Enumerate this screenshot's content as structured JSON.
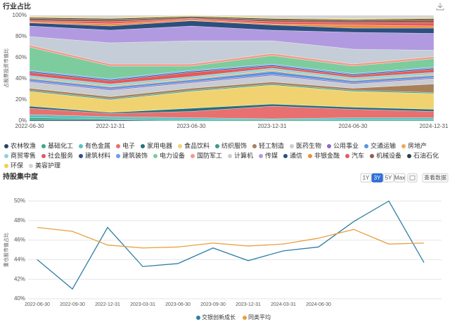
{
  "header": {
    "title": "行业占比"
  },
  "section2": {
    "title": "持股集中度",
    "ranges": [
      "1Y",
      "3Y",
      "5Y",
      "Max"
    ],
    "active_range": 1,
    "view_data": "查看数据"
  },
  "chart_data": [
    {
      "type": "stacked_area",
      "y_label": "占股票投资市值比",
      "categories": [
        "2022-06-30",
        "2022-12-31",
        "2023-06-30",
        "2023-12-31",
        "2024-06-30",
        "2024-12-31"
      ],
      "ylim": [
        0,
        100
      ],
      "yticks": [
        {
          "value": 0,
          "label": "0%"
        },
        {
          "value": 20,
          "label": "20%"
        },
        {
          "value": 40,
          "label": "40%"
        },
        {
          "value": 60,
          "label": "60%"
        },
        {
          "value": 80,
          "label": "80%"
        },
        {
          "value": 100,
          "label": "100%"
        }
      ],
      "grid": true,
      "series": [
        {
          "name": "农林牧渔",
          "color": "#24436b",
          "values": [
            1,
            1,
            0,
            0,
            0,
            0
          ]
        },
        {
          "name": "基础化工",
          "color": "#3aa88a",
          "values": [
            2,
            1,
            1,
            1,
            1,
            1
          ]
        },
        {
          "name": "有色金属",
          "color": "#5bc0c0",
          "values": [
            3,
            2,
            2,
            1,
            2,
            2
          ]
        },
        {
          "name": "电子",
          "color": "#e87070",
          "values": [
            6,
            3,
            6,
            12,
            8,
            6
          ]
        },
        {
          "name": "家用电器",
          "color": "#2b6e7a",
          "values": [
            2,
            1,
            3,
            2,
            2,
            2
          ]
        },
        {
          "name": "食品饮料",
          "color": "#f0d370",
          "values": [
            14,
            12,
            16,
            18,
            15,
            15
          ]
        },
        {
          "name": "纺织服饰",
          "color": "#3c9a8a",
          "values": [
            1,
            1,
            1,
            1,
            1,
            1
          ]
        },
        {
          "name": "轻工制造",
          "color": "#a8805a",
          "values": [
            2,
            2,
            2,
            2,
            2,
            8
          ]
        },
        {
          "name": "医药生物",
          "color": "#c9ccd1",
          "values": [
            6,
            6,
            5,
            6,
            4,
            5
          ]
        },
        {
          "name": "公用事业",
          "color": "#8a6ac2",
          "values": [
            1,
            1,
            1,
            1,
            1,
            1
          ]
        },
        {
          "name": "交通运输",
          "color": "#5a96dc",
          "values": [
            2,
            2,
            2,
            3,
            2,
            2
          ]
        },
        {
          "name": "房地产",
          "color": "#f0a860",
          "values": [
            1,
            1,
            1,
            1,
            1,
            1
          ]
        },
        {
          "name": "商贸零售",
          "color": "#8ad4dc",
          "values": [
            2,
            2,
            2,
            2,
            2,
            2
          ]
        },
        {
          "name": "社会服务",
          "color": "#e45a5a",
          "values": [
            3,
            3,
            4,
            2,
            2,
            3
          ]
        },
        {
          "name": "建筑材料",
          "color": "#2d4f8a",
          "values": [
            1,
            1,
            1,
            1,
            1,
            1
          ]
        },
        {
          "name": "建筑装饰",
          "color": "#6b9af5",
          "values": [
            1,
            1,
            1,
            1,
            1,
            1
          ]
        },
        {
          "name": "电力设备",
          "color": "#7ccc9e",
          "values": [
            22,
            12,
            4,
            8,
            7,
            8
          ]
        },
        {
          "name": "国防军工",
          "color": "#f29a8a",
          "values": [
            2,
            2,
            2,
            2,
            2,
            2
          ]
        },
        {
          "name": "计算机",
          "color": "#c4cdd8",
          "values": [
            8,
            20,
            22,
            12,
            14,
            6
          ]
        },
        {
          "name": "传媒",
          "color": "#b29ae0",
          "values": [
            10,
            12,
            14,
            10,
            16,
            16
          ]
        },
        {
          "name": "通信",
          "color": "#2c4f80",
          "values": [
            3,
            4,
            5,
            5,
            4,
            5
          ]
        },
        {
          "name": "非银金融",
          "color": "#e8903e",
          "values": [
            1,
            2,
            1,
            1,
            3,
            2
          ]
        },
        {
          "name": "汽车",
          "color": "#e85a5a",
          "values": [
            1,
            2,
            1,
            2,
            2,
            3
          ]
        },
        {
          "name": "机械设备",
          "color": "#9a5a4a",
          "values": [
            2,
            2,
            1,
            2,
            2,
            3
          ]
        },
        {
          "name": "石油石化",
          "color": "#2c3e50",
          "values": [
            1,
            1,
            1,
            1,
            1,
            1
          ]
        },
        {
          "name": "环保",
          "color": "#f0d050",
          "values": [
            1,
            1,
            1,
            1,
            1,
            1
          ]
        },
        {
          "name": "美容护理",
          "color": "#d4d4d4",
          "values": [
            1,
            2,
            0,
            2,
            3,
            2
          ]
        }
      ]
    },
    {
      "type": "line",
      "y_label": "重仓股市值占比",
      "categories": [
        "2022-06-30",
        "2022-09-30",
        "2022-12-31",
        "2023-03-31",
        "2023-06-30",
        "2023-09-30",
        "2023-12-31",
        "2024-03-31",
        "2024-06-30",
        null,
        null,
        null
      ],
      "ylim": [
        40,
        50
      ],
      "yticks": [
        {
          "value": 40,
          "label": "40%"
        },
        {
          "value": 42,
          "label": "42%"
        },
        {
          "value": 44,
          "label": "44%"
        },
        {
          "value": 46,
          "label": "46%"
        },
        {
          "value": 48,
          "label": "48%"
        },
        {
          "value": 50,
          "label": "50%"
        }
      ],
      "grid": true,
      "series": [
        {
          "name": "交银创新成长",
          "color": "#2f7fa5",
          "values": [
            44.0,
            41.0,
            47.3,
            43.3,
            43.6,
            45.2,
            43.9,
            44.9,
            45.3,
            47.9,
            50.0,
            43.7
          ]
        },
        {
          "name": "同类平均",
          "color": "#e8a040",
          "values": [
            47.3,
            46.9,
            45.5,
            45.2,
            45.3,
            45.7,
            45.4,
            45.6,
            46.2,
            47.1,
            45.6,
            45.7
          ]
        }
      ]
    }
  ]
}
